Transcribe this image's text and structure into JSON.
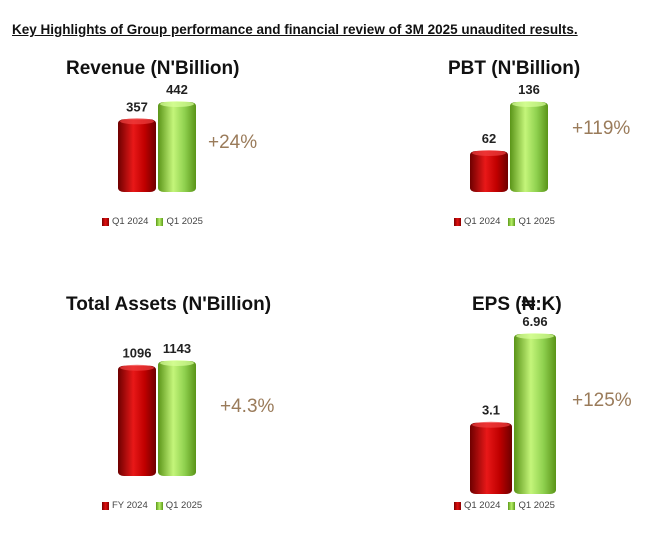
{
  "page": {
    "title": "Key Highlights of Group performance and financial review of 3M 2025 unaudited results."
  },
  "chart_data": [
    {
      "type": "bar",
      "title": "Revenue (N'Billion)",
      "categories": [
        "Q1 2024",
        "Q1 2025"
      ],
      "values": [
        357,
        442
      ],
      "value_labels": [
        "357",
        "442"
      ],
      "change": "+24%",
      "colors": [
        "#c00000",
        "#8fd14f"
      ],
      "legend_placement": "bottom",
      "grid": false
    },
    {
      "type": "bar",
      "title": "PBT (N'Billion)",
      "categories": [
        "Q1 2024",
        "Q1 2025"
      ],
      "values": [
        62,
        136
      ],
      "value_labels": [
        "62",
        "136"
      ],
      "change": "+119%",
      "colors": [
        "#c00000",
        "#8fd14f"
      ],
      "legend_placement": "bottom",
      "grid": false
    },
    {
      "type": "bar",
      "title": "Total Assets (N'Billion)",
      "categories": [
        "FY 2024",
        "Q1 2025"
      ],
      "values": [
        1096,
        1143
      ],
      "value_labels": [
        "1096",
        "1143"
      ],
      "change": "+4.3%",
      "colors": [
        "#c00000",
        "#8fd14f"
      ],
      "legend_placement": "bottom",
      "grid": false
    },
    {
      "type": "bar",
      "title": "EPS (₦:K)",
      "categories": [
        "Q1 2024",
        "Q1 2025"
      ],
      "values": [
        3.1,
        6.96
      ],
      "value_labels": [
        "3.1",
        "6.96"
      ],
      "change": "+125%",
      "colors": [
        "#c00000",
        "#8fd14f"
      ],
      "legend_placement": "bottom",
      "grid": false
    }
  ]
}
